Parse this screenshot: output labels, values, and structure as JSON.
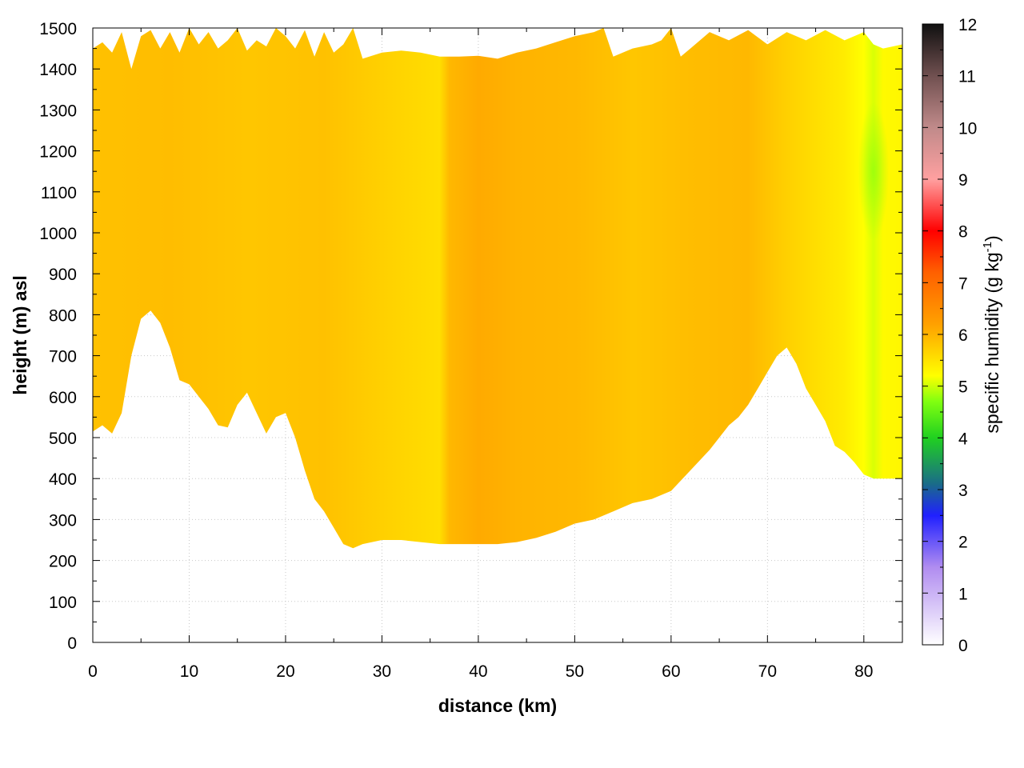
{
  "chart_data": {
    "type": "heatmap",
    "title": "",
    "xlabel": "distance (km)",
    "ylabel": "height (m) asl",
    "xlim": [
      0,
      84
    ],
    "ylim": [
      0,
      1500
    ],
    "x_ticks": [
      0,
      10,
      20,
      30,
      40,
      50,
      60,
      70,
      80
    ],
    "y_ticks": [
      0,
      100,
      200,
      300,
      400,
      500,
      600,
      700,
      800,
      900,
      1000,
      1100,
      1200,
      1300,
      1400,
      1500
    ],
    "grid": true,
    "colorbar": {
      "label_main": "specific humidity (g kg",
      "label_sup": "-1",
      "label_end": ")",
      "range": [
        0,
        12
      ],
      "ticks": [
        0,
        1,
        2,
        3,
        4,
        5,
        6,
        7,
        8,
        9,
        10,
        11,
        12
      ],
      "stops": [
        {
          "value": 0,
          "color": "#ffffff"
        },
        {
          "value": 1.5,
          "color": "#b08cf0"
        },
        {
          "value": 2.5,
          "color": "#2020ff"
        },
        {
          "value": 3.1,
          "color": "#1a6a8a"
        },
        {
          "value": 4,
          "color": "#20d020"
        },
        {
          "value": 4.7,
          "color": "#80ff10"
        },
        {
          "value": 5.2,
          "color": "#ffff00"
        },
        {
          "value": 6.2,
          "color": "#ffa000"
        },
        {
          "value": 7.2,
          "color": "#ff6000"
        },
        {
          "value": 8,
          "color": "#ff0000"
        },
        {
          "value": 9,
          "color": "#ffa0a0"
        },
        {
          "value": 10,
          "color": "#c08a8a"
        },
        {
          "value": 11,
          "color": "#705050"
        },
        {
          "value": 12,
          "color": "#101010"
        }
      ]
    },
    "terrain": {
      "x_km": [
        0,
        1,
        2,
        3,
        4,
        5,
        6,
        7,
        8,
        9,
        10,
        11,
        12,
        13,
        14,
        15,
        16,
        17,
        18,
        19,
        20,
        21,
        22,
        23,
        24,
        25,
        26,
        27,
        28,
        30,
        32,
        34,
        36,
        38,
        40,
        42,
        44,
        46,
        48,
        50,
        52,
        54,
        56,
        58,
        60,
        62,
        64,
        66,
        67,
        68,
        69,
        70,
        71,
        72,
        73,
        74,
        75,
        76,
        77,
        78,
        79,
        80,
        81,
        82,
        83,
        84
      ],
      "height_m": [
        515,
        530,
        510,
        560,
        700,
        790,
        810,
        780,
        720,
        640,
        630,
        600,
        570,
        530,
        525,
        580,
        610,
        560,
        510,
        550,
        560,
        500,
        420,
        350,
        320,
        280,
        240,
        230,
        240,
        250,
        250,
        245,
        240,
        240,
        240,
        240,
        245,
        255,
        270,
        290,
        300,
        320,
        340,
        350,
        370,
        420,
        470,
        530,
        550,
        580,
        620,
        660,
        700,
        720,
        680,
        620,
        580,
        540,
        480,
        465,
        440,
        410,
        400,
        400,
        400,
        400
      ]
    },
    "top_m": {
      "x_km": [
        0,
        1,
        2,
        3,
        4,
        5,
        6,
        7,
        8,
        9,
        10,
        11,
        12,
        13,
        14,
        15,
        16,
        17,
        18,
        19,
        20,
        21,
        22,
        23,
        24,
        25,
        26,
        27,
        28,
        30,
        32,
        34,
        36,
        38,
        40,
        42,
        44,
        46,
        48,
        50,
        52,
        53,
        54,
        56,
        58,
        59,
        60,
        61,
        62,
        64,
        66,
        68,
        70,
        72,
        74,
        76,
        78,
        80,
        81,
        82,
        84
      ],
      "height_m": [
        1450,
        1465,
        1440,
        1490,
        1400,
        1480,
        1495,
        1450,
        1490,
        1440,
        1500,
        1460,
        1490,
        1450,
        1470,
        1500,
        1445,
        1470,
        1455,
        1500,
        1480,
        1450,
        1495,
        1430,
        1490,
        1440,
        1460,
        1500,
        1425,
        1440,
        1445,
        1440,
        1430,
        1430,
        1432,
        1425,
        1440,
        1450,
        1465,
        1480,
        1490,
        1500,
        1430,
        1450,
        1460,
        1470,
        1500,
        1430,
        1450,
        1490,
        1470,
        1495,
        1460,
        1490,
        1470,
        1495,
        1470,
        1490,
        1460,
        1450,
        1460
      ]
    },
    "humidity_profile": {
      "x_km": [
        0,
        8,
        16,
        24,
        30,
        36,
        37,
        40,
        44,
        50,
        56,
        62,
        68,
        72,
        76,
        78,
        80,
        81,
        82,
        84
      ],
      "q_g_per_kg": [
        5.85,
        5.9,
        5.8,
        5.85,
        5.7,
        5.55,
        5.95,
        6.1,
        6.0,
        5.95,
        5.8,
        5.9,
        5.95,
        5.7,
        5.5,
        5.4,
        5.2,
        5.05,
        5.25,
        5.3
      ]
    },
    "moist_anomaly": {
      "center_km": 81,
      "center_m": 1150,
      "q_g_per_kg": 4.8
    }
  }
}
